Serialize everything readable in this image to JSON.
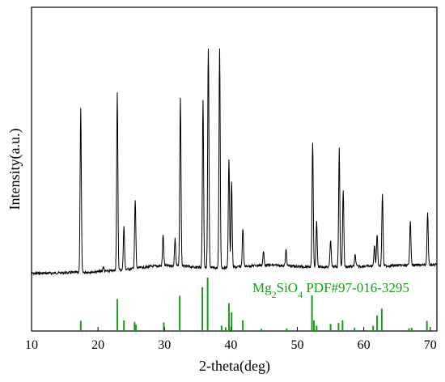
{
  "chart_data": {
    "type": "line",
    "title": "",
    "xlabel": "2-theta(deg)",
    "ylabel": "Intensity(a.u.)",
    "xlim": [
      10,
      71
    ],
    "x_ticks": [
      "10",
      "20",
      "30",
      "40",
      "50",
      "60",
      "70"
    ],
    "x_tick_values": [
      10,
      20,
      30,
      40,
      50,
      60,
      70
    ],
    "colors": {
      "pattern": "#000000",
      "reference": "#1a9c1a",
      "axes": "#000000"
    },
    "reference_label": {
      "formula_main": "Mg",
      "formula_sub1": "2",
      "formula_mid": "SiO",
      "formula_sub2": "4",
      "card": " PDF#97-016-3295"
    },
    "pattern_peaks": [
      {
        "x": 17.4,
        "h": 0.72
      },
      {
        "x": 20.8,
        "h": 0.02
      },
      {
        "x": 22.9,
        "h": 0.78
      },
      {
        "x": 23.9,
        "h": 0.19
      },
      {
        "x": 25.6,
        "h": 0.3
      },
      {
        "x": 29.8,
        "h": 0.14
      },
      {
        "x": 31.6,
        "h": 0.12
      },
      {
        "x": 32.4,
        "h": 0.74
      },
      {
        "x": 35.8,
        "h": 0.74
      },
      {
        "x": 36.6,
        "h": 1.0
      },
      {
        "x": 38.3,
        "h": 0.98
      },
      {
        "x": 39.7,
        "h": 0.48
      },
      {
        "x": 40.1,
        "h": 0.38
      },
      {
        "x": 41.8,
        "h": 0.17
      },
      {
        "x": 44.9,
        "h": 0.06
      },
      {
        "x": 48.3,
        "h": 0.07
      },
      {
        "x": 52.3,
        "h": 0.55
      },
      {
        "x": 52.9,
        "h": 0.2
      },
      {
        "x": 55.0,
        "h": 0.12
      },
      {
        "x": 56.3,
        "h": 0.52
      },
      {
        "x": 56.9,
        "h": 0.34
      },
      {
        "x": 58.7,
        "h": 0.05
      },
      {
        "x": 61.6,
        "h": 0.09
      },
      {
        "x": 62.0,
        "h": 0.14
      },
      {
        "x": 62.8,
        "h": 0.32
      },
      {
        "x": 67.0,
        "h": 0.2
      },
      {
        "x": 69.6,
        "h": 0.23
      }
    ],
    "reference_lines": [
      {
        "x": 17.4,
        "h": 0.19
      },
      {
        "x": 22.9,
        "h": 0.6
      },
      {
        "x": 23.9,
        "h": 0.2
      },
      {
        "x": 25.5,
        "h": 0.17
      },
      {
        "x": 25.7,
        "h": 0.12
      },
      {
        "x": 29.9,
        "h": 0.16
      },
      {
        "x": 32.3,
        "h": 0.66
      },
      {
        "x": 35.7,
        "h": 0.82
      },
      {
        "x": 36.5,
        "h": 1.0
      },
      {
        "x": 38.6,
        "h": 0.1
      },
      {
        "x": 39.2,
        "h": 0.07
      },
      {
        "x": 39.7,
        "h": 0.52
      },
      {
        "x": 40.1,
        "h": 0.35
      },
      {
        "x": 41.8,
        "h": 0.2
      },
      {
        "x": 44.6,
        "h": 0.04
      },
      {
        "x": 48.4,
        "h": 0.05
      },
      {
        "x": 52.2,
        "h": 0.67
      },
      {
        "x": 52.5,
        "h": 0.2
      },
      {
        "x": 52.9,
        "h": 0.1
      },
      {
        "x": 55.0,
        "h": 0.13
      },
      {
        "x": 56.2,
        "h": 0.15
      },
      {
        "x": 56.8,
        "h": 0.2
      },
      {
        "x": 58.6,
        "h": 0.06
      },
      {
        "x": 61.4,
        "h": 0.1
      },
      {
        "x": 62.0,
        "h": 0.29
      },
      {
        "x": 62.7,
        "h": 0.42
      },
      {
        "x": 66.8,
        "h": 0.05
      },
      {
        "x": 67.2,
        "h": 0.06
      },
      {
        "x": 69.5,
        "h": 0.19
      }
    ]
  }
}
